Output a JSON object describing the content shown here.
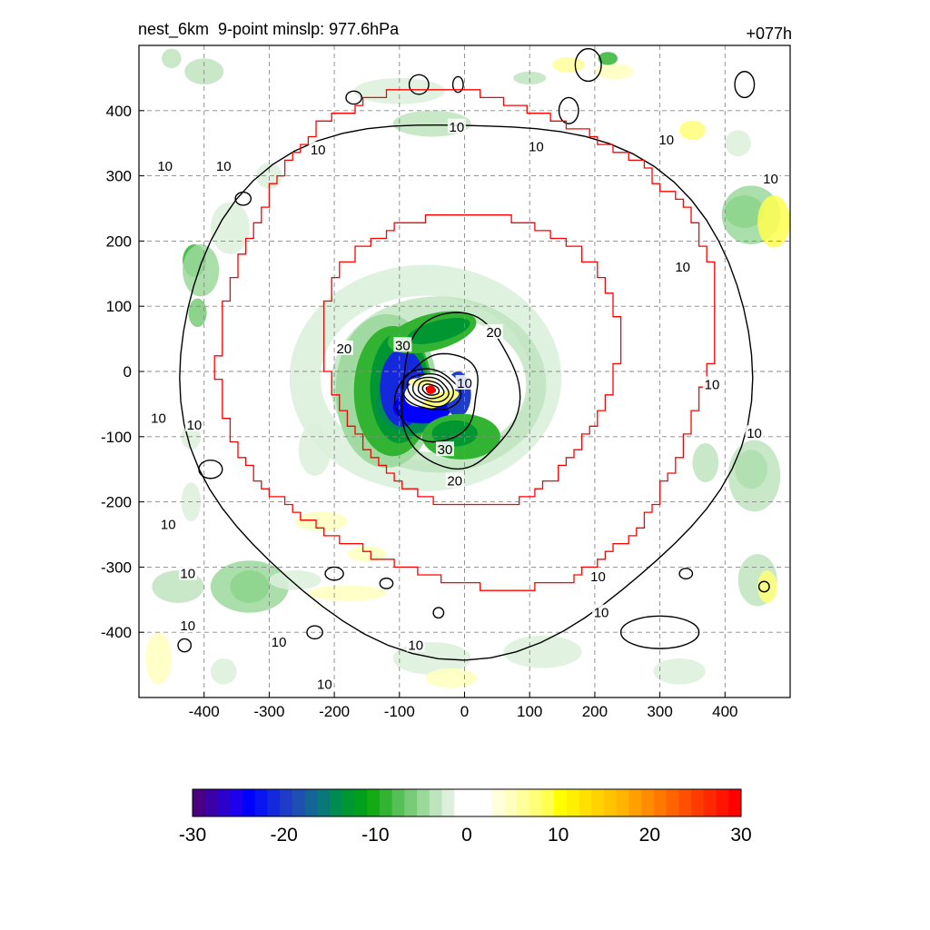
{
  "header": {
    "title": "nest_6km  9-point minslp: 977.6hPa",
    "forecast_hour": "+077h"
  },
  "chart_data": {
    "type": "heatmap",
    "title": "nest_6km  9-point minslp: 977.6hPa",
    "subtitle": "+077h",
    "xlim": [
      -500,
      500
    ],
    "ylim": [
      -500,
      500
    ],
    "xticks": [
      -400,
      -300,
      -200,
      -100,
      0,
      100,
      200,
      300,
      400
    ],
    "yticks": [
      -400,
      -300,
      -200,
      -100,
      0,
      100,
      200,
      300,
      400
    ],
    "grid": true,
    "storm_center": [
      -52,
      -28
    ],
    "contour_levels": [
      10,
      20,
      30
    ],
    "contour_labels": [
      {
        "text": "10",
        "x": -460,
        "y": 315
      },
      {
        "text": "10",
        "x": -370,
        "y": 315
      },
      {
        "text": "10",
        "x": -225,
        "y": 340
      },
      {
        "text": "10",
        "x": -12,
        "y": 375
      },
      {
        "text": "10",
        "x": 110,
        "y": 345
      },
      {
        "text": "10",
        "x": 310,
        "y": 355
      },
      {
        "text": "10",
        "x": 470,
        "y": 295
      },
      {
        "text": "10",
        "x": 335,
        "y": 160
      },
      {
        "text": "10",
        "x": 380,
        "y": -20
      },
      {
        "text": "10",
        "x": 445,
        "y": -95
      },
      {
        "text": "10",
        "x": -470,
        "y": -72
      },
      {
        "text": "10",
        "x": -415,
        "y": -82
      },
      {
        "text": "10",
        "x": -455,
        "y": -235
      },
      {
        "text": "10",
        "x": -425,
        "y": -310
      },
      {
        "text": "10",
        "x": -425,
        "y": -390
      },
      {
        "text": "10",
        "x": -285,
        "y": -415
      },
      {
        "text": "10",
        "x": -75,
        "y": -420
      },
      {
        "text": "10",
        "x": -215,
        "y": -480
      },
      {
        "text": "10",
        "x": 205,
        "y": -315
      },
      {
        "text": "10",
        "x": 210,
        "y": -370
      },
      {
        "text": "20",
        "x": -185,
        "y": 35
      },
      {
        "text": "20",
        "x": 45,
        "y": 60
      },
      {
        "text": "20",
        "x": -15,
        "y": -168
      },
      {
        "text": "30",
        "x": -95,
        "y": 40
      },
      {
        "text": "30",
        "x": -30,
        "y": -120
      },
      {
        "text": "10",
        "x": 0,
        "y": -18
      }
    ],
    "colorbar": {
      "min": -30,
      "max": 30,
      "ticks": [
        "-30",
        "-20",
        "-10",
        "0",
        "10",
        "20",
        "30"
      ],
      "colors": [
        "#4B0082",
        "#3C00A8",
        "#2D00CC",
        "#1E00EE",
        "#0000FF",
        "#0A14F0",
        "#1428DC",
        "#1E3CC8",
        "#1E50B4",
        "#146496",
        "#0A7878",
        "#008C50",
        "#009632",
        "#00A01E",
        "#14AA14",
        "#32B432",
        "#55C055",
        "#78CC78",
        "#9BD89B",
        "#BEE4BE",
        "#DCF0DC",
        "#FFFFFF",
        "#FFFFFF",
        "#FFFFFF",
        "#FFFFDC",
        "#FFFFBE",
        "#FFFF9B",
        "#FFFF78",
        "#FFFF50",
        "#FFFF00",
        "#FFF000",
        "#FFE100",
        "#FFD200",
        "#FFC300",
        "#FFB400",
        "#FFA000",
        "#FF8C00",
        "#FF7800",
        "#FF6400",
        "#FF5000",
        "#FF3C00",
        "#FF2800",
        "#FF1400",
        "#FF0000"
      ]
    }
  }
}
